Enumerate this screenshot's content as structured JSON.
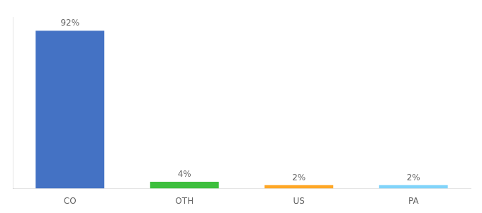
{
  "chart_data": {
    "type": "bar",
    "categories": [
      "CO",
      "OTH",
      "US",
      "PA"
    ],
    "values": [
      92,
      4,
      2,
      2
    ],
    "value_labels": [
      "92%",
      "4%",
      "2%",
      "2%"
    ],
    "data_labels": true,
    "colors": [
      "#4472C4",
      "#3DBF3D",
      "#FFA726",
      "#81D4FA"
    ],
    "ylim": [
      0,
      100
    ],
    "grid": false,
    "tick_labels": "x"
  }
}
